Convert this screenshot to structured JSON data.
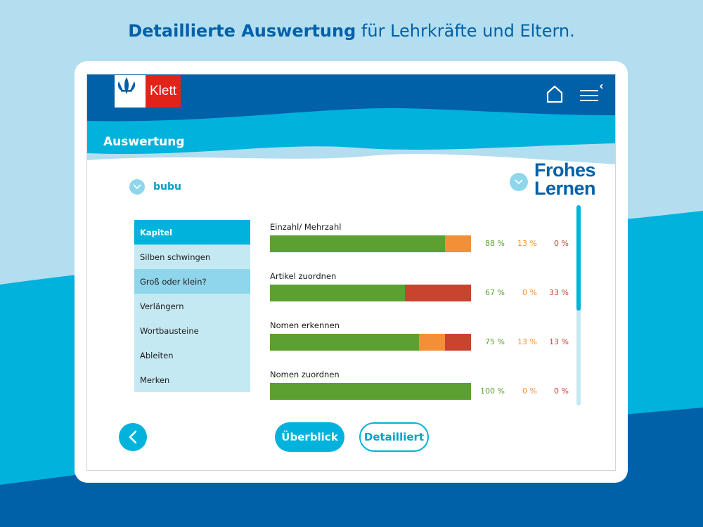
{
  "headline": {
    "bold": "Detaillierte Auswertung",
    "rest": " für Lehrkräfte und Eltern."
  },
  "app": {
    "logo_text": "Klett",
    "page_title": "Auswertung",
    "user_name": "bubu",
    "brand_line1": "Frohes",
    "brand_line2": "Lernen"
  },
  "chapters": [
    {
      "label": "Kapitel",
      "type": "header"
    },
    {
      "label": "Silben schwingen",
      "type": "normal"
    },
    {
      "label": "Groß oder klein?",
      "type": "selected"
    },
    {
      "label": "Verlängern",
      "type": "normal"
    },
    {
      "label": "Wortbausteine",
      "type": "normal"
    },
    {
      "label": "Ableiten",
      "type": "normal"
    },
    {
      "label": "Merken",
      "type": "normal"
    }
  ],
  "results": [
    {
      "label": "Einzahl/ Mehrzahl",
      "green": 88,
      "orange": 13,
      "red": 0,
      "green_label": "88 %",
      "orange_label": "13 %",
      "red_label": "0 %"
    },
    {
      "label": "Artikel zuordnen",
      "green": 67,
      "orange": 0,
      "red": 33,
      "green_label": "67 %",
      "orange_label": "0 %",
      "red_label": "33 %"
    },
    {
      "label": "Nomen erkennen",
      "green": 75,
      "orange": 13,
      "red": 13,
      "green_label": "75 %",
      "orange_label": "13 %",
      "red_label": "13 %"
    },
    {
      "label": "Nomen zuordnen",
      "green": 100,
      "orange": 0,
      "red": 0,
      "green_label": "100 %",
      "orange_label": "0 %",
      "red_label": "0 %"
    }
  ],
  "buttons": {
    "overview": "Überblick",
    "detail": "Detailliert"
  },
  "icons": {
    "home": "home-icon",
    "menu": "menu-icon",
    "back": "chevron-left-icon",
    "dropdown": "chevron-down-icon"
  },
  "colors": {
    "correct": "#5ca031",
    "partial": "#f39037",
    "wrong": "#c9432e",
    "accent": "#00b2dc",
    "primary": "#0060a8"
  }
}
